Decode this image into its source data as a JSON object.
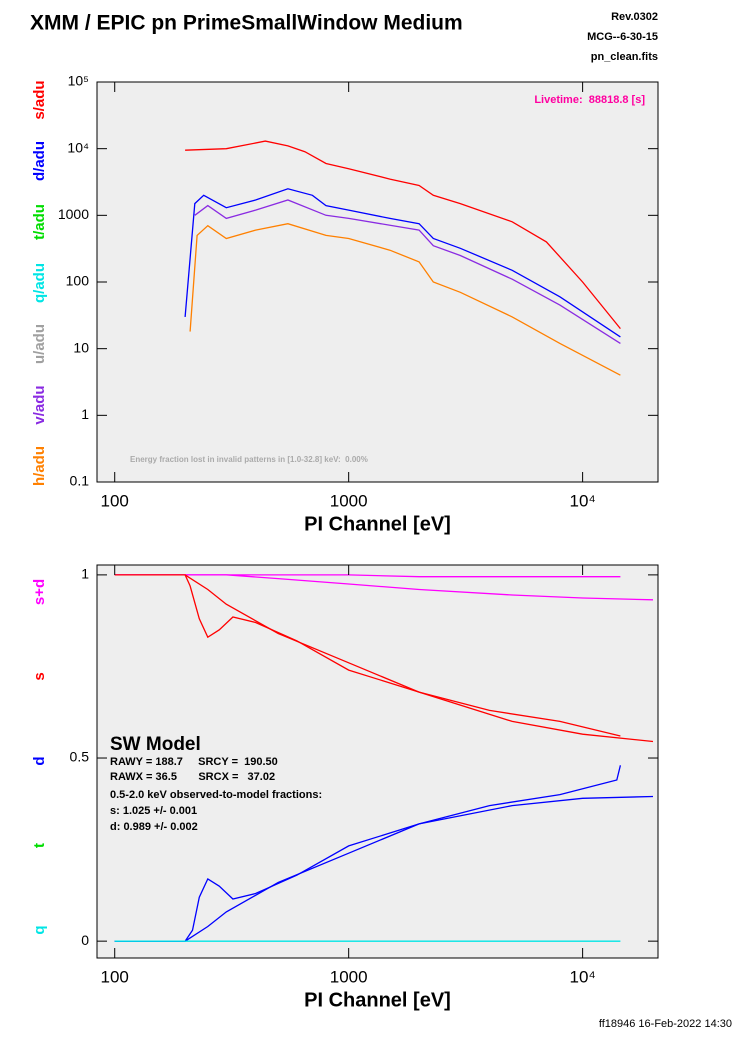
{
  "header": {
    "title": "XMM / EPIC pn PrimeSmallWindow Medium",
    "rev": "Rev.0302",
    "object": "MCG--6-30-15",
    "file": "pn_clean.fits"
  },
  "footer": "ff18946 16-Feb-2022 14:30",
  "chart_data": [
    {
      "type": "line",
      "xlabel": "PI Channel [eV]",
      "xlog": true,
      "ylog": true,
      "xlim": [
        84,
        21000
      ],
      "ylim": [
        0.1,
        100000
      ],
      "xticks": [
        100,
        1000,
        {
          "value": 10000,
          "label": "10⁴"
        }
      ],
      "yticks": [
        0.1,
        1,
        10,
        100,
        1000,
        {
          "value": 10000,
          "label": "10⁴"
        },
        {
          "value": 100000,
          "label": "10⁵"
        }
      ],
      "legend": [
        {
          "name": "s/adu",
          "color": "#ff0000"
        },
        {
          "name": "d/adu",
          "color": "#0000ff"
        },
        {
          "name": "t/adu",
          "color": "#00dd00"
        },
        {
          "name": "q/adu",
          "color": "#00e5e5"
        },
        {
          "name": "u/adu",
          "color": "#a0a0a0"
        },
        {
          "name": "v/adu",
          "color": "#8a2be2"
        },
        {
          "name": "h/adu",
          "color": "#ff8000"
        }
      ],
      "annotations": [
        {
          "text": "Livetime:  88818.8 [s]",
          "color": "#ff00a0"
        },
        {
          "text": "Energy fraction lost in invalid patterns in [1.0-32.8] keV:  0.00%",
          "color": "#aaaaaa"
        }
      ],
      "series": [
        {
          "color": "#ff0000",
          "x": [
            200,
            300,
            440,
            550,
            650,
            800,
            1000,
            1500,
            2000,
            2300,
            3000,
            5000,
            7000,
            10000,
            14500
          ],
          "values": [
            9500,
            10000,
            13000,
            11000,
            9000,
            6000,
            5000,
            3500,
            2800,
            2000,
            1500,
            800,
            400,
            100,
            20
          ]
        },
        {
          "color": "#0000ff",
          "x": [
            200,
            220,
            240,
            300,
            400,
            550,
            700,
            800,
            1000,
            1500,
            2000,
            2300,
            3000,
            5000,
            8000,
            14500
          ],
          "values": [
            30,
            1500,
            2000,
            1300,
            1700,
            2500,
            2000,
            1400,
            1200,
            900,
            750,
            450,
            320,
            150,
            60,
            15
          ]
        },
        {
          "color": "#8a2be2",
          "x": [
            220,
            250,
            300,
            400,
            550,
            800,
            1000,
            2000,
            2300,
            3000,
            5000,
            8000,
            14500
          ],
          "values": [
            1000,
            1400,
            900,
            1200,
            1700,
            1000,
            900,
            600,
            350,
            250,
            110,
            45,
            12
          ]
        },
        {
          "color": "#ff8000",
          "x": [
            210,
            225,
            250,
            300,
            400,
            550,
            800,
            1000,
            1500,
            2000,
            2300,
            3000,
            5000,
            8000,
            14500
          ],
          "values": [
            18,
            500,
            700,
            450,
            600,
            750,
            500,
            450,
            300,
            200,
            100,
            70,
            30,
            12,
            4
          ]
        }
      ]
    },
    {
      "type": "line",
      "xlabel": "PI Channel [eV]",
      "xlog": true,
      "ylog": false,
      "xlim": [
        84,
        21000
      ],
      "ylim": [
        -0.046,
        1.027
      ],
      "xticks": [
        100,
        1000,
        {
          "value": 10000,
          "label": "10⁴"
        }
      ],
      "yticks": [
        0,
        0.5,
        1
      ],
      "legend": [
        {
          "name": "s+d",
          "color": "#ff00ff"
        },
        {
          "name": "s",
          "color": "#ff0000"
        },
        {
          "name": "d",
          "color": "#0000ff"
        },
        {
          "name": "t",
          "color": "#00dd00"
        },
        {
          "name": "q",
          "color": "#00e5e5"
        }
      ],
      "annotations": [
        {
          "text": "SW Model",
          "color": "#000000"
        },
        {
          "text": "RAWY = 188.7     SRCY =  190.50",
          "color": "#000000"
        },
        {
          "text": "RAWX = 36.5       SRCX =   37.02",
          "color": "#000000"
        },
        {
          "text": "0.5-2.0 keV observed-to-model fractions:",
          "color": "#000000"
        },
        {
          "text": "s: 1.025 +/- 0.001",
          "color": "#000000"
        },
        {
          "text": "d: 0.989 +/- 0.002",
          "color": "#000000"
        }
      ],
      "series": [
        {
          "color": "#ff00ff",
          "x": [
            100,
            1000,
            2000,
            5000,
            14500
          ],
          "values": [
            1,
            1,
            0.995,
            0.995,
            0.995
          ]
        },
        {
          "color": "#ff00ff",
          "x": [
            100,
            300,
            500,
            1000,
            2000,
            5000,
            10000,
            20000
          ],
          "values": [
            1,
            1,
            0.99,
            0.975,
            0.96,
            0.945,
            0.937,
            0.932
          ]
        },
        {
          "color": "#ff0000",
          "x": [
            100,
            200,
            210,
            230,
            250,
            280,
            320,
            400,
            600,
            1000,
            2000,
            4000,
            8000,
            14500
          ],
          "values": [
            1,
            1,
            0.97,
            0.88,
            0.83,
            0.85,
            0.885,
            0.87,
            0.82,
            0.74,
            0.68,
            0.63,
            0.6,
            0.56
          ]
        },
        {
          "color": "#ff0000",
          "x": [
            200,
            250,
            300,
            500,
            1000,
            2000,
            5000,
            10000,
            20000
          ],
          "values": [
            1,
            0.96,
            0.92,
            0.84,
            0.76,
            0.68,
            0.6,
            0.565,
            0.545
          ]
        },
        {
          "color": "#0000ff",
          "x": [
            100,
            200,
            215,
            230,
            250,
            280,
            320,
            400,
            600,
            1000,
            2000,
            4000,
            8000,
            14000,
            14500
          ],
          "values": [
            0,
            0,
            0.03,
            0.12,
            0.17,
            0.15,
            0.115,
            0.13,
            0.18,
            0.26,
            0.32,
            0.37,
            0.4,
            0.44,
            0.48
          ]
        },
        {
          "color": "#0000ff",
          "x": [
            100,
            200,
            250,
            300,
            500,
            1000,
            2000,
            5000,
            10000,
            20000
          ],
          "values": [
            0,
            0,
            0.04,
            0.08,
            0.16,
            0.24,
            0.32,
            0.37,
            0.39,
            0.395
          ]
        },
        {
          "color": "#00e5e5",
          "x": [
            100,
            14500
          ],
          "values": [
            0,
            0
          ]
        }
      ]
    }
  ]
}
